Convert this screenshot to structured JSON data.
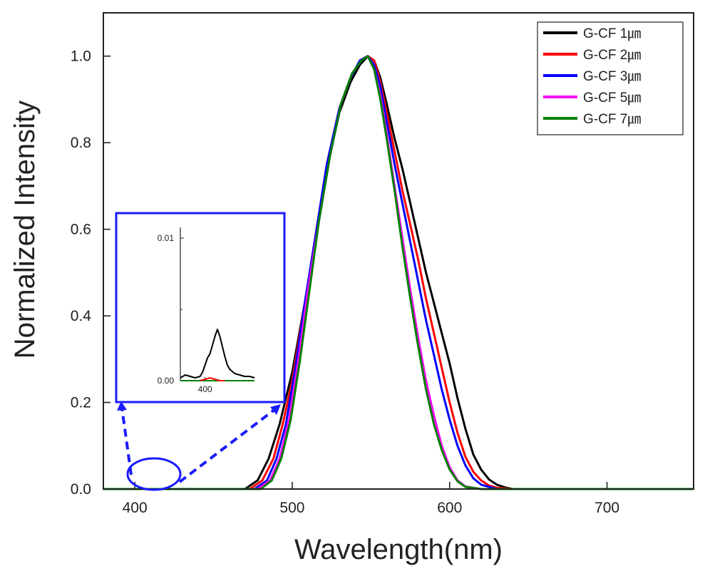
{
  "chart_data": [
    {
      "type": "line",
      "title": "",
      "xlabel": "Wavelength(nm)",
      "ylabel": "Normalized Intensity",
      "xlim": [
        380,
        755
      ],
      "ylim": [
        0,
        1.1
      ],
      "x_ticks": [
        400,
        500,
        600,
        700
      ],
      "y_ticks": [
        0.0,
        0.2,
        0.4,
        0.6,
        0.8,
        1.0
      ],
      "x_tick_labels": [
        "400",
        "500",
        "600",
        "700"
      ],
      "y_tick_labels": [
        "0.0",
        "0.2",
        "0.4",
        "0.6",
        "0.8",
        "1.0"
      ],
      "grid": false,
      "legend_position": "top-right",
      "series": [
        {
          "name": "G-CF 1㎛",
          "color": "#000000",
          "x": [
            380,
            470,
            478,
            485,
            492,
            500,
            508,
            515,
            522,
            530,
            537,
            543,
            548,
            552,
            556,
            560,
            565,
            570,
            575,
            580,
            585,
            590,
            595,
            600,
            605,
            610,
            615,
            620,
            625,
            630,
            635,
            640,
            660,
            755
          ],
          "y": [
            0.0,
            0.0,
            0.02,
            0.07,
            0.15,
            0.27,
            0.43,
            0.58,
            0.74,
            0.87,
            0.94,
            0.98,
            1.0,
            0.99,
            0.95,
            0.89,
            0.81,
            0.74,
            0.66,
            0.58,
            0.5,
            0.43,
            0.36,
            0.29,
            0.21,
            0.14,
            0.08,
            0.045,
            0.022,
            0.01,
            0.004,
            0.0,
            0.0,
            0.0
          ]
        },
        {
          "name": "G-CF 2㎛",
          "color": "#ff0000",
          "x": [
            380,
            473,
            481,
            488,
            494,
            500,
            508,
            515,
            522,
            530,
            537,
            543,
            548,
            552,
            556,
            560,
            565,
            570,
            575,
            580,
            585,
            590,
            595,
            600,
            605,
            610,
            615,
            620,
            625,
            630,
            640,
            755
          ],
          "y": [
            0.0,
            0.0,
            0.02,
            0.07,
            0.15,
            0.25,
            0.43,
            0.59,
            0.75,
            0.88,
            0.95,
            0.99,
            1.0,
            0.99,
            0.94,
            0.87,
            0.78,
            0.69,
            0.61,
            0.53,
            0.44,
            0.36,
            0.28,
            0.2,
            0.13,
            0.075,
            0.04,
            0.02,
            0.008,
            0.003,
            0.0,
            0.0
          ]
        },
        {
          "name": "G-CF 3㎛",
          "color": "#0000ff",
          "x": [
            380,
            476,
            484,
            490,
            496,
            502,
            508,
            515,
            522,
            530,
            537,
            543,
            548,
            552,
            556,
            560,
            565,
            570,
            575,
            580,
            585,
            590,
            595,
            600,
            605,
            610,
            615,
            620,
            630,
            755
          ],
          "y": [
            0.0,
            0.0,
            0.02,
            0.07,
            0.15,
            0.28,
            0.43,
            0.59,
            0.75,
            0.88,
            0.95,
            0.99,
            1.0,
            0.98,
            0.93,
            0.85,
            0.75,
            0.66,
            0.57,
            0.48,
            0.39,
            0.31,
            0.23,
            0.16,
            0.1,
            0.055,
            0.025,
            0.01,
            0.0,
            0.0
          ]
        },
        {
          "name": "G-CF 5㎛",
          "color": "#ff00ff",
          "x": [
            380,
            478,
            486,
            492,
            498,
            504,
            510,
            517,
            524,
            531,
            538,
            544,
            548,
            552,
            556,
            560,
            565,
            570,
            575,
            580,
            585,
            590,
            595,
            600,
            605,
            610,
            620,
            755
          ],
          "y": [
            0.0,
            0.0,
            0.02,
            0.07,
            0.16,
            0.3,
            0.46,
            0.62,
            0.77,
            0.89,
            0.96,
            0.99,
            1.0,
            0.97,
            0.91,
            0.82,
            0.7,
            0.58,
            0.46,
            0.35,
            0.25,
            0.17,
            0.1,
            0.05,
            0.02,
            0.006,
            0.0,
            0.0
          ]
        },
        {
          "name": "G-CF 7㎛",
          "color": "#008000",
          "x": [
            380,
            480,
            487,
            493,
            499,
            505,
            511,
            517,
            524,
            531,
            538,
            544,
            548,
            552,
            556,
            560,
            565,
            570,
            575,
            580,
            585,
            590,
            595,
            600,
            605,
            610,
            620,
            755
          ],
          "y": [
            0.0,
            0.0,
            0.02,
            0.07,
            0.16,
            0.3,
            0.46,
            0.62,
            0.77,
            0.89,
            0.96,
            0.99,
            1.0,
            0.97,
            0.9,
            0.81,
            0.69,
            0.56,
            0.44,
            0.33,
            0.23,
            0.15,
            0.09,
            0.045,
            0.018,
            0.005,
            0.0,
            0.0
          ]
        }
      ]
    },
    {
      "type": "line",
      "inset": true,
      "xlim": [
        390,
        420
      ],
      "ylim": [
        0,
        0.0105
      ],
      "x_ticks": [
        400
      ],
      "y_ticks": [
        0.0,
        0.01
      ],
      "x_tick_labels": [
        "400"
      ],
      "y_tick_labels": [
        "0.00",
        "0.01"
      ],
      "series": [
        {
          "name": "G-CF 1㎛",
          "color": "#000000",
          "x": [
            390,
            392,
            394,
            396,
            398,
            399,
            400,
            401,
            402,
            403,
            404,
            405,
            406,
            407,
            408,
            409,
            410,
            412,
            414,
            416,
            418,
            420
          ],
          "y": [
            0.0002,
            0.0004,
            0.0003,
            0.0002,
            0.0003,
            0.0006,
            0.0011,
            0.0016,
            0.0019,
            0.0025,
            0.0031,
            0.0036,
            0.0031,
            0.0024,
            0.0017,
            0.0011,
            0.0008,
            0.0005,
            0.0004,
            0.0003,
            0.0003,
            0.0002
          ]
        },
        {
          "name": "G-CF 2㎛",
          "color": "#ff0000",
          "x": [
            398,
            400,
            402,
            404,
            406,
            408
          ],
          "y": [
            0.0,
            0.0001,
            0.0002,
            0.0001,
            0.0,
            0.0
          ]
        },
        {
          "name": "G-CF 7㎛",
          "color": "#008000",
          "x": [
            390,
            400,
            410,
            420
          ],
          "y": [
            0.0,
            0.0,
            0.0,
            0.0
          ]
        }
      ]
    }
  ]
}
